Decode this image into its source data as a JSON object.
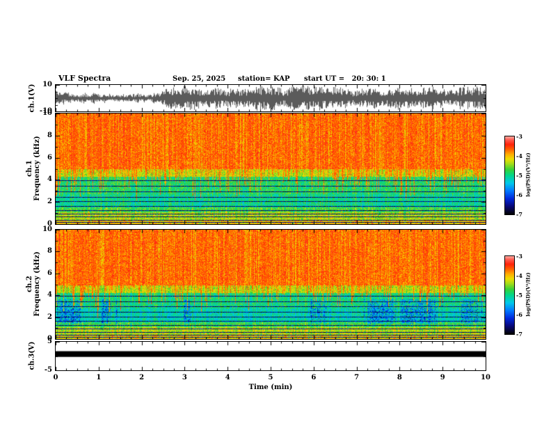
{
  "header": {
    "title": "VLF Spectra",
    "date": "Sep. 25, 2025",
    "station": "station= KAP",
    "start_ut": "start UT =   20: 30: 1"
  },
  "xaxis": {
    "label": "Time (min)",
    "lim": [
      0,
      10
    ],
    "ticks": [
      0,
      1,
      2,
      3,
      4,
      5,
      6,
      7,
      8,
      9,
      10
    ]
  },
  "chart_data": [
    {
      "id": "ch1-waveform",
      "type": "line",
      "ylabel": "ch.1(V)",
      "ylim": [
        -10,
        10
      ],
      "yticks": [
        10,
        -10
      ],
      "yticks_minor": [
        5,
        0,
        -5
      ],
      "description": "dense broadband noise waveform spanning roughly -9 to +9 V for the full 10 minutes"
    },
    {
      "id": "ch1-spectrogram",
      "type": "heatmap",
      "ylabel_lines": [
        "ch.1",
        "Frequency (kHz)"
      ],
      "ylim": [
        0,
        10
      ],
      "yticks": [
        10,
        8,
        6,
        4,
        2,
        0
      ],
      "yticks_minor": [
        9,
        7,
        5,
        3,
        1
      ],
      "value_range": [
        -7,
        -3
      ],
      "colorbar": {
        "label": "log(PSD)(V²/Hz)",
        "ticks": [
          "-3",
          "-4",
          "-5",
          "-6",
          "-7"
        ]
      },
      "bands": [
        {
          "f": [
            0,
            0.35
          ],
          "psd": -4.05
        },
        {
          "f": [
            0.35,
            1.1
          ],
          "psd": -4.35
        },
        {
          "f": [
            1.1,
            1.5
          ],
          "psd": -4.7
        },
        {
          "f": [
            1.5,
            2.7
          ],
          "psd": -5.0
        },
        {
          "f": [
            2.7,
            4.3
          ],
          "psd": -4.85
        },
        {
          "f": [
            4.3,
            5.0
          ],
          "psd": -4.3
        },
        {
          "f": [
            5.0,
            10
          ],
          "psd": -3.75
        }
      ],
      "interference_lines_khz": [
        0.1,
        0.3,
        0.6,
        0.9,
        1.2,
        1.6,
        2.0,
        2.4,
        2.9,
        3.4,
        3.9
      ],
      "sferic_columns": {
        "probability": 0.5,
        "min_freq_khz": 1.8,
        "top_freq_khz": 5.0
      }
    },
    {
      "id": "ch2-spectrogram",
      "type": "heatmap",
      "ylabel_lines": [
        "ch.2",
        "Frequency (kHz)"
      ],
      "ylim": [
        0,
        10
      ],
      "yticks": [
        10,
        8,
        6,
        4,
        2,
        0
      ],
      "yticks_minor": [
        9,
        7,
        5,
        3,
        1
      ],
      "value_range": [
        -7,
        -3
      ],
      "colorbar": {
        "label": "log(PSD)(V²/Hz)",
        "ticks": [
          "-3",
          "-4",
          "-5",
          "-6",
          "-7"
        ]
      },
      "bands": [
        {
          "f": [
            0,
            0.35
          ],
          "psd": -4.1
        },
        {
          "f": [
            0.35,
            1.1
          ],
          "psd": -4.35
        },
        {
          "f": [
            1.1,
            1.5
          ],
          "psd": -4.75
        },
        {
          "f": [
            1.5,
            2.8
          ],
          "psd": -5.15
        },
        {
          "f": [
            2.8,
            4.2
          ],
          "psd": -4.95
        },
        {
          "f": [
            4.2,
            4.9
          ],
          "psd": -4.35
        },
        {
          "f": [
            4.9,
            10
          ],
          "psd": -3.75
        }
      ],
      "interference_lines_khz": [
        0.1,
        0.3,
        0.6,
        0.9,
        1.2,
        1.6,
        2.0,
        2.4,
        2.9,
        3.4,
        3.9
      ],
      "sferic_columns": {
        "probability": 0.5,
        "min_freq_khz": 1.8,
        "top_freq_khz": 4.9
      },
      "blue_patch_band_khz": [
        1.4,
        3.6
      ],
      "blue_patch_probability": 0.5
    },
    {
      "id": "ch3-waveform",
      "type": "line",
      "ylabel": "ch.3(V)",
      "ylim": [
        -5,
        5
      ],
      "yticks": [
        5,
        -5
      ],
      "yticks_minor": [
        0
      ],
      "bar_value_range": [
        1.7,
        -0.3
      ],
      "description": "flat saturated trace rendered as a thick black horizontal bar just above 0 V"
    }
  ]
}
